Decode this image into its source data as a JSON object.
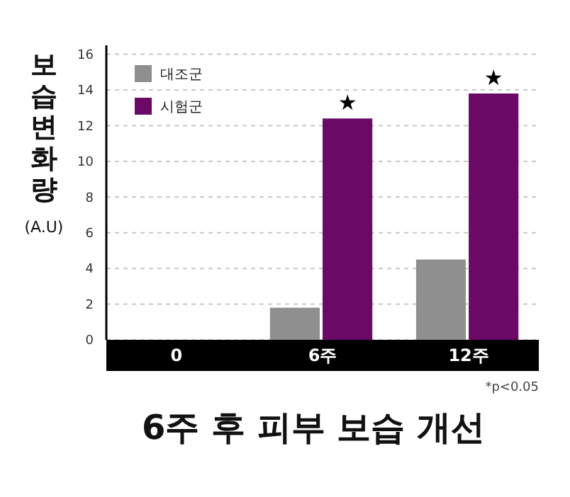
{
  "chart_data": {
    "type": "bar",
    "title": "6주 후 피부 보습 개선",
    "ylabel": "보습변화량 (A.U)",
    "categories": [
      "0",
      "6주",
      "12주"
    ],
    "series": [
      {
        "name": "대조군",
        "color": "#8f8f8f",
        "values": [
          0,
          1.8,
          4.5
        ]
      },
      {
        "name": "시험군",
        "color": "#6a0a66",
        "values": [
          0,
          12.4,
          13.8
        ]
      }
    ],
    "ylim": [
      0,
      16.5
    ],
    "yticks": [
      0,
      2,
      4,
      6,
      8,
      10,
      12,
      14,
      16
    ],
    "grid": "y",
    "legend": "top left",
    "annotations": [
      {
        "text": "★",
        "x": "6주",
        "y": 12.4
      },
      {
        "text": "★",
        "x": "12주",
        "y": 13.8
      },
      "*p<0.05"
    ]
  }
}
